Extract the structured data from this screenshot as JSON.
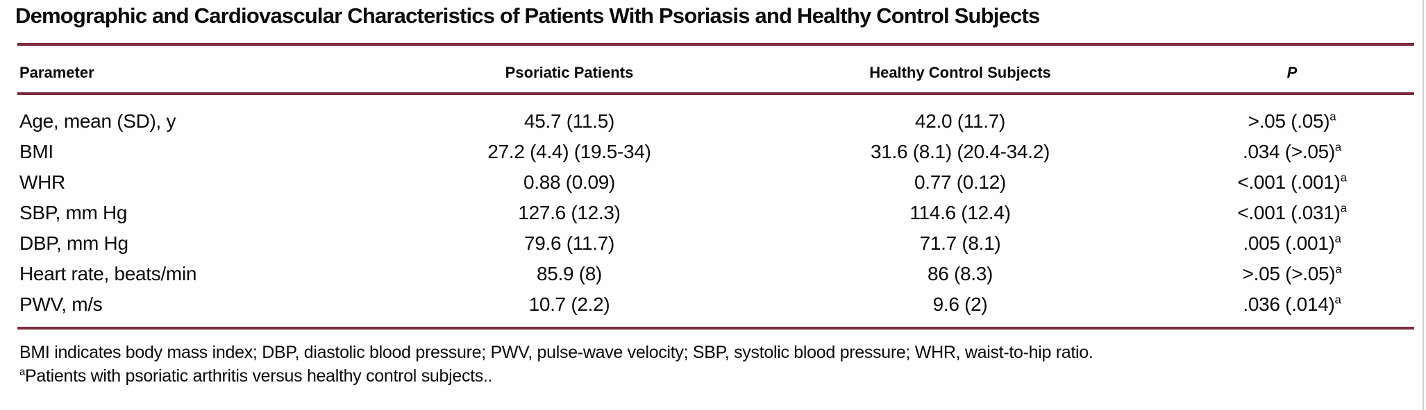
{
  "title": "Demographic and Cardiovascular Characteristics of Patients With Psoriasis and Healthy Control Subjects",
  "colors": {
    "rule": "#7e2b3f",
    "background": "#fefefe",
    "text": "#0a0a0a"
  },
  "table": {
    "columns": [
      "Parameter",
      "Psoriatic Patients",
      "Healthy Control Subjects",
      "P"
    ],
    "footnote_marker": "a",
    "rows": [
      {
        "parameter": "Age, mean (SD), y",
        "psoriatic": "45.7 (11.5)",
        "control": "42.0 (11.7)",
        "p": ">.05 (.05)"
      },
      {
        "parameter": "BMI",
        "psoriatic": "27.2 (4.4) (19.5-34)",
        "control": "31.6 (8.1) (20.4-34.2)",
        "p": ".034 (>.05)"
      },
      {
        "parameter": "WHR",
        "psoriatic": "0.88 (0.09)",
        "control": "0.77 (0.12)",
        "p": "<.001 (.001)"
      },
      {
        "parameter": "SBP, mm Hg",
        "psoriatic": "127.6 (12.3)",
        "control": "114.6 (12.4)",
        "p": "<.001 (.031)"
      },
      {
        "parameter": "DBP, mm Hg",
        "psoriatic": "79.6 (11.7)",
        "control": "71.7 (8.1)",
        "p": ".005 (.001)"
      },
      {
        "parameter": "Heart rate, beats/min",
        "psoriatic": "85.9 (8)",
        "control": "86 (8.3)",
        "p": ">.05 (>.05)"
      },
      {
        "parameter": "PWV, m/s",
        "psoriatic": "10.7 (2.2)",
        "control": "9.6 (2)",
        "p": ".036 (.014)"
      }
    ]
  },
  "footnotes": [
    {
      "marker": "",
      "text": "BMI indicates body mass index; DBP, diastolic blood pressure; PWV, pulse-wave velocity; SBP, systolic blood pressure; WHR, waist-to-hip ratio."
    },
    {
      "marker": "a",
      "text": "Patients with psoriatic arthritis versus healthy control subjects.."
    }
  ]
}
